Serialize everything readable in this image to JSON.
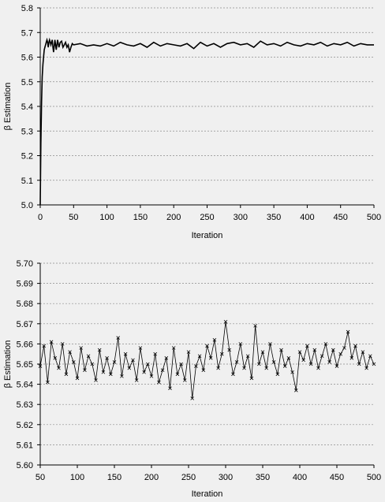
{
  "chart_data": [
    {
      "type": "line",
      "xlabel": "Iteration",
      "ylabel": "β Estimation",
      "xlim": [
        0,
        500
      ],
      "ylim": [
        5.0,
        5.8
      ],
      "xticks": [
        "0",
        "50",
        "100",
        "150",
        "200",
        "250",
        "300",
        "350",
        "400",
        "450",
        "500"
      ],
      "yticks": [
        "5.0",
        "5.1",
        "5.2",
        "5.3",
        "5.4",
        "5.5",
        "5.6",
        "5.7",
        "5.8"
      ],
      "grid": true,
      "series": [
        {
          "x": [
            0,
            1,
            2,
            3,
            4,
            5,
            6,
            7,
            8,
            9,
            10,
            11,
            12,
            13,
            14,
            15,
            16,
            17,
            18,
            19,
            20,
            22,
            24,
            26,
            28,
            30,
            32,
            34,
            36,
            38,
            40,
            42,
            44,
            46,
            48,
            50,
            60,
            70,
            80,
            90,
            100,
            110,
            120,
            130,
            140,
            150,
            160,
            170,
            180,
            190,
            200,
            210,
            220,
            230,
            240,
            250,
            260,
            270,
            280,
            290,
            300,
            310,
            320,
            330,
            340,
            350,
            360,
            370,
            380,
            390,
            400,
            410,
            420,
            430,
            440,
            450,
            460,
            470,
            480,
            490,
            500
          ],
          "y": [
            5.0,
            5.25,
            5.42,
            5.52,
            5.57,
            5.6,
            5.63,
            5.64,
            5.65,
            5.66,
            5.67,
            5.66,
            5.64,
            5.66,
            5.67,
            5.66,
            5.65,
            5.66,
            5.67,
            5.64,
            5.62,
            5.67,
            5.63,
            5.67,
            5.64,
            5.66,
            5.665,
            5.64,
            5.65,
            5.66,
            5.64,
            5.65,
            5.62,
            5.64,
            5.655,
            5.65,
            5.655,
            5.645,
            5.65,
            5.645,
            5.655,
            5.645,
            5.66,
            5.65,
            5.645,
            5.655,
            5.64,
            5.66,
            5.645,
            5.655,
            5.65,
            5.645,
            5.655,
            5.635,
            5.66,
            5.645,
            5.655,
            5.64,
            5.655,
            5.66,
            5.65,
            5.655,
            5.64,
            5.665,
            5.65,
            5.655,
            5.645,
            5.66,
            5.65,
            5.645,
            5.655,
            5.65,
            5.66,
            5.645,
            5.655,
            5.65,
            5.66,
            5.645,
            5.655,
            5.65,
            5.65
          ]
        }
      ]
    },
    {
      "type": "line",
      "xlabel": "Iteration",
      "ylabel": "β Estimation",
      "xlim": [
        50,
        500
      ],
      "ylim": [
        5.6,
        5.7
      ],
      "xticks": [
        "50",
        "100",
        "150",
        "200",
        "250",
        "300",
        "350",
        "400",
        "450",
        "500"
      ],
      "yticks": [
        "5.60",
        "5.61",
        "5.62",
        "5.63",
        "5.64",
        "5.65",
        "5.66",
        "5.67",
        "5.68",
        "5.69",
        "5.70"
      ],
      "grid": true,
      "markers": true,
      "series": [
        {
          "x": [
            50,
            55,
            60,
            65,
            70,
            75,
            80,
            85,
            90,
            95,
            100,
            105,
            110,
            115,
            120,
            125,
            130,
            135,
            140,
            145,
            150,
            155,
            160,
            165,
            170,
            175,
            180,
            185,
            190,
            195,
            200,
            205,
            210,
            215,
            220,
            225,
            230,
            235,
            240,
            245,
            250,
            255,
            260,
            265,
            270,
            275,
            280,
            285,
            290,
            295,
            300,
            305,
            310,
            315,
            320,
            325,
            330,
            335,
            340,
            345,
            350,
            355,
            360,
            365,
            370,
            375,
            380,
            385,
            390,
            395,
            400,
            405,
            410,
            415,
            420,
            425,
            430,
            435,
            440,
            445,
            450,
            455,
            460,
            465,
            470,
            475,
            480,
            485,
            490,
            495,
            500
          ],
          "y": [
            5.649,
            5.659,
            5.641,
            5.661,
            5.653,
            5.648,
            5.66,
            5.645,
            5.656,
            5.651,
            5.643,
            5.658,
            5.647,
            5.654,
            5.65,
            5.642,
            5.657,
            5.646,
            5.653,
            5.645,
            5.651,
            5.663,
            5.644,
            5.655,
            5.648,
            5.652,
            5.642,
            5.658,
            5.646,
            5.65,
            5.644,
            5.655,
            5.641,
            5.647,
            5.653,
            5.638,
            5.658,
            5.645,
            5.65,
            5.642,
            5.656,
            5.633,
            5.649,
            5.654,
            5.647,
            5.659,
            5.653,
            5.662,
            5.648,
            5.655,
            5.671,
            5.657,
            5.645,
            5.651,
            5.66,
            5.648,
            5.654,
            5.643,
            5.669,
            5.65,
            5.656,
            5.648,
            5.66,
            5.651,
            5.645,
            5.657,
            5.649,
            5.653,
            5.646,
            5.637,
            5.656,
            5.652,
            5.659,
            5.65,
            5.657,
            5.648,
            5.654,
            5.66,
            5.651,
            5.657,
            5.649,
            5.655,
            5.658,
            5.666,
            5.653,
            5.659,
            5.65,
            5.656,
            5.648,
            5.654,
            5.65
          ]
        }
      ]
    }
  ]
}
